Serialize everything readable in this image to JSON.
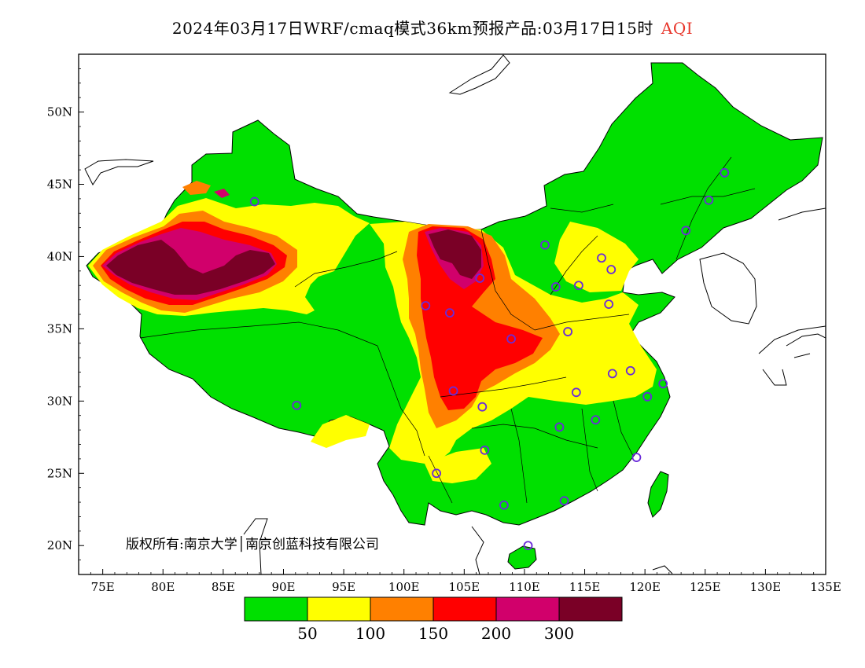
{
  "header": {
    "title_main": "2024年03月17日WRF/cmaq模式36km预报产品:03月17日15时",
    "title_pollutant": "AQI",
    "pollutant_color": "#e8352a"
  },
  "map": {
    "lon_range": [
      73,
      135
    ],
    "lat_range": [
      18,
      54
    ],
    "lon_ticks": [
      "75E",
      "80E",
      "85E",
      "90E",
      "95E",
      "100E",
      "105E",
      "110E",
      "115E",
      "120E",
      "125E",
      "130E",
      "135E"
    ],
    "lat_ticks": [
      "50N",
      "45N",
      "40N",
      "35N",
      "30N",
      "25N",
      "20N"
    ],
    "copyright": "版权所有:南京大学│南京创蓝科技有限公司",
    "stations": [
      {
        "lon": 87.6,
        "lat": 43.8
      },
      {
        "lon": 91.1,
        "lat": 29.7
      },
      {
        "lon": 101.8,
        "lat": 36.6
      },
      {
        "lon": 103.8,
        "lat": 36.1
      },
      {
        "lon": 106.3,
        "lat": 38.5
      },
      {
        "lon": 104.1,
        "lat": 30.7
      },
      {
        "lon": 106.5,
        "lat": 29.6
      },
      {
        "lon": 106.7,
        "lat": 26.6
      },
      {
        "lon": 102.7,
        "lat": 25.0
      },
      {
        "lon": 108.9,
        "lat": 34.3
      },
      {
        "lon": 111.7,
        "lat": 40.8
      },
      {
        "lon": 112.6,
        "lat": 37.9
      },
      {
        "lon": 114.5,
        "lat": 38.0
      },
      {
        "lon": 116.4,
        "lat": 39.9
      },
      {
        "lon": 117.2,
        "lat": 39.1
      },
      {
        "lon": 117.0,
        "lat": 36.7
      },
      {
        "lon": 113.6,
        "lat": 34.8
      },
      {
        "lon": 114.3,
        "lat": 30.6
      },
      {
        "lon": 112.9,
        "lat": 28.2
      },
      {
        "lon": 115.9,
        "lat": 28.7
      },
      {
        "lon": 117.3,
        "lat": 31.9
      },
      {
        "lon": 118.8,
        "lat": 32.1
      },
      {
        "lon": 120.2,
        "lat": 30.3
      },
      {
        "lon": 121.5,
        "lat": 31.2
      },
      {
        "lon": 119.3,
        "lat": 26.1
      },
      {
        "lon": 113.3,
        "lat": 23.1
      },
      {
        "lon": 108.3,
        "lat": 22.8
      },
      {
        "lon": 110.3,
        "lat": 20.0
      },
      {
        "lon": 123.4,
        "lat": 41.8
      },
      {
        "lon": 125.3,
        "lat": 43.9
      },
      {
        "lon": 126.6,
        "lat": 45.8
      }
    ]
  },
  "legend": {
    "colors": [
      "#00e000",
      "#ffff00",
      "#ff8000",
      "#ff0000",
      "#d1006b",
      "#7a0026"
    ],
    "labels": [
      "50",
      "100",
      "150",
      "200",
      "300"
    ]
  }
}
